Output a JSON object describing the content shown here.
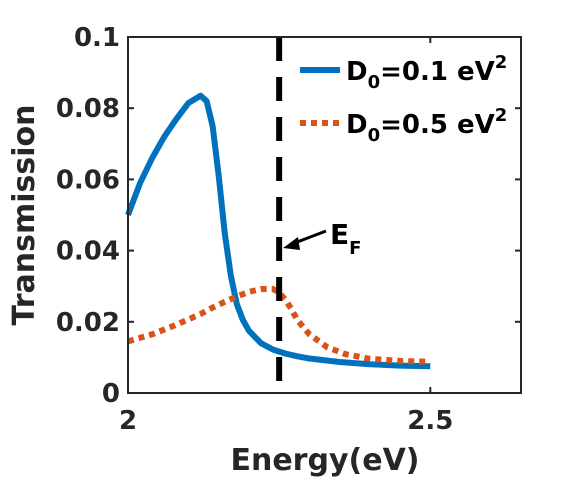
{
  "chart_data": {
    "type": "line",
    "xlabel": "Energy(eV)",
    "ylabel": "Transmission",
    "xlim": [
      2,
      2.65
    ],
    "ylim": [
      0,
      0.1
    ],
    "xticks": [
      2,
      2.5
    ],
    "xtick_labels": [
      "2",
      "2.5"
    ],
    "yticks": [
      0,
      0.02,
      0.04,
      0.06,
      0.08,
      0.1
    ],
    "ytick_labels": [
      "0",
      "0.02",
      "0.04",
      "0.06",
      "0.08",
      "0.1"
    ],
    "grid": false,
    "legend_position": "top-right",
    "series": [
      {
        "name": "D0=0.1 eV2",
        "label_main": "D",
        "label_sub": "0",
        "label_mid": "=0.1 eV",
        "label_sup": "2",
        "color": "#0072BD",
        "style": "solid",
        "x": [
          2.0,
          2.02,
          2.04,
          2.06,
          2.08,
          2.1,
          2.12,
          2.13,
          2.14,
          2.15,
          2.16,
          2.17,
          2.18,
          2.19,
          2.2,
          2.22,
          2.24,
          2.26,
          2.28,
          2.3,
          2.35,
          2.4,
          2.45,
          2.5
        ],
        "y": [
          0.05,
          0.059,
          0.066,
          0.072,
          0.077,
          0.0815,
          0.0835,
          0.082,
          0.075,
          0.061,
          0.045,
          0.033,
          0.025,
          0.0205,
          0.0175,
          0.014,
          0.0122,
          0.0111,
          0.0103,
          0.0097,
          0.0087,
          0.0081,
          0.0077,
          0.0075
        ]
      },
      {
        "name": "D0=0.5 eV2",
        "label_main": "D",
        "label_sub": "0",
        "label_mid": "=0.5 eV",
        "label_sup": "2",
        "color": "#D95319",
        "style": "dotted",
        "x": [
          2.0,
          2.02,
          2.04,
          2.06,
          2.08,
          2.1,
          2.12,
          2.14,
          2.16,
          2.18,
          2.2,
          2.22,
          2.24,
          2.25,
          2.26,
          2.27,
          2.28,
          2.3,
          2.33,
          2.36,
          2.4,
          2.45,
          2.5
        ],
        "y": [
          0.0145,
          0.0155,
          0.0165,
          0.0178,
          0.0192,
          0.0207,
          0.0222,
          0.024,
          0.0256,
          0.0271,
          0.0284,
          0.0292,
          0.0292,
          0.0282,
          0.0262,
          0.0237,
          0.0205,
          0.0165,
          0.0128,
          0.0109,
          0.0096,
          0.009,
          0.0088
        ]
      }
    ],
    "vline": {
      "x": 2.25,
      "color": "#000000",
      "style": "dashed"
    },
    "annotation": {
      "text_main": "E",
      "text_sub": "F",
      "x": 2.25,
      "y": 0.041
    }
  }
}
